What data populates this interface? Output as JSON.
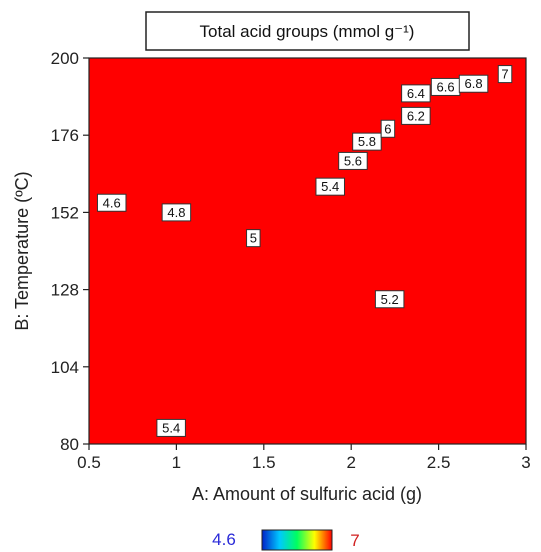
{
  "chart_data": {
    "type": "heatmap",
    "subtype": "contour",
    "title": "Total acid groups (mmol g⁻¹)",
    "xlabel": "A: Amount of sulfuric acid  (g)",
    "ylabel": "B: Temperature (ºC)",
    "xlim": [
      0.5,
      3
    ],
    "ylim": [
      80,
      200
    ],
    "x_ticks": [
      "0.5",
      "1",
      "1.5",
      "2",
      "2.5",
      "3"
    ],
    "y_ticks": [
      "80",
      "104",
      "128",
      "152",
      "176",
      "200"
    ],
    "colorscale": [
      "#0022c8",
      "#00c8ff",
      "#00ff60",
      "#ffff00",
      "#ff0000"
    ],
    "color_range": [
      4.6,
      7
    ],
    "legend": {
      "min_label": "4.6",
      "max_label": "7",
      "placement": "bottom"
    },
    "contour_levels": [
      4.6,
      4.8,
      5,
      5.2,
      5.4,
      5.6,
      5.8,
      6,
      6.2,
      6.4,
      6.6,
      6.8,
      7
    ],
    "contour_labels": [
      {
        "text": "4.6",
        "x": 0.63,
        "y": 155
      },
      {
        "text": "4.8",
        "x": 1.0,
        "y": 152
      },
      {
        "text": "5",
        "x": 1.44,
        "y": 144
      },
      {
        "text": "5.2",
        "x": 2.22,
        "y": 125
      },
      {
        "text": "5.4",
        "x": 1.88,
        "y": 160
      },
      {
        "text": "5.4",
        "x": 0.97,
        "y": 85
      },
      {
        "text": "5.6",
        "x": 2.01,
        "y": 168
      },
      {
        "text": "5.8",
        "x": 2.09,
        "y": 174
      },
      {
        "text": "6",
        "x": 2.21,
        "y": 178
      },
      {
        "text": "6.2",
        "x": 2.37,
        "y": 182
      },
      {
        "text": "6.4",
        "x": 2.37,
        "y": 189
      },
      {
        "text": "6.6",
        "x": 2.54,
        "y": 191
      },
      {
        "text": "6.8",
        "x": 2.7,
        "y": 192
      },
      {
        "text": "7",
        "x": 2.88,
        "y": 195
      }
    ]
  }
}
